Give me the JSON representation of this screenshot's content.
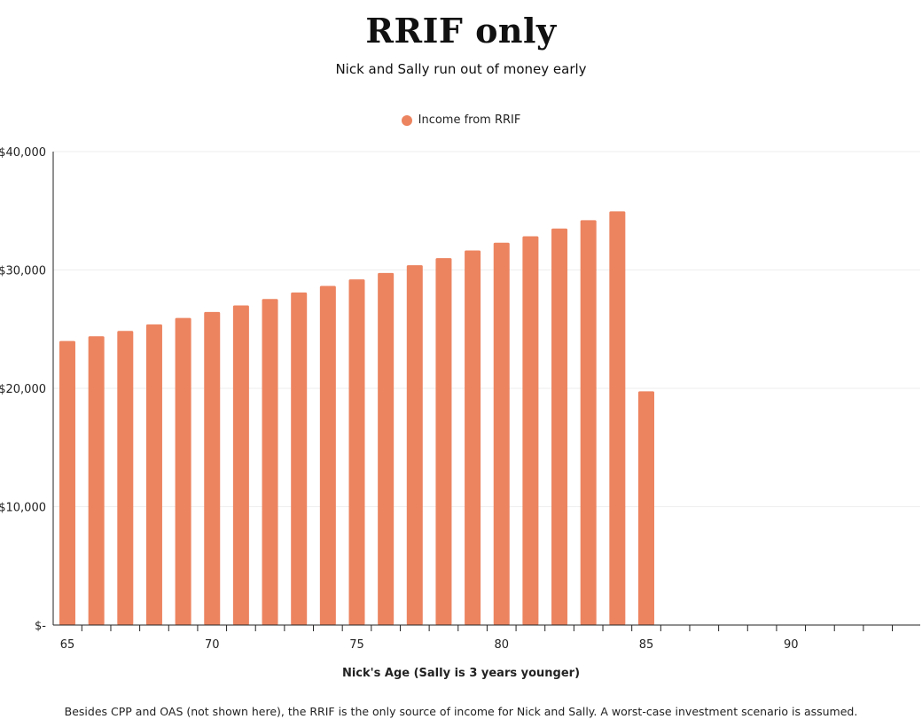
{
  "chart_data": {
    "type": "bar",
    "title": "RRIF only",
    "subtitle": "Nick and Sally run out of money early",
    "xlabel": "Nick's Age (Sally is 3 years younger)",
    "ylabel": "",
    "footnote": "Besides CPP and OAS (not shown here), the RRIF is the only source of income for Nick and Sally. A worst-case investment scenario is assumed.",
    "legend_position": "top-center",
    "grid": true,
    "color": "#EC8460",
    "ylim": [
      0,
      40000
    ],
    "xlim": [
      65,
      94
    ],
    "y_ticks": [
      0,
      10000,
      20000,
      30000,
      40000
    ],
    "y_tick_labels": [
      "$-",
      "$10,000",
      "$20,000",
      "$30,000",
      "$40,000"
    ],
    "x_tick_labels": [
      65,
      70,
      75,
      80,
      85,
      90
    ],
    "series": [
      {
        "name": "Income from RRIF",
        "x": [
          65,
          66,
          67,
          68,
          69,
          70,
          71,
          72,
          73,
          74,
          75,
          76,
          77,
          78,
          79,
          80,
          81,
          82,
          83,
          84,
          85,
          86,
          87,
          88,
          89,
          90,
          91,
          92,
          93,
          94
        ],
        "values": [
          24000,
          24400,
          24850,
          25400,
          25950,
          26450,
          27000,
          27550,
          28100,
          28650,
          29200,
          29750,
          30400,
          31000,
          31650,
          32300,
          32850,
          33500,
          34200,
          34950,
          19750,
          0,
          0,
          0,
          0,
          0,
          0,
          0,
          0,
          0
        ]
      }
    ]
  }
}
